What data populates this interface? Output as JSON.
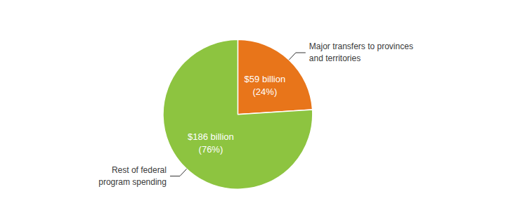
{
  "chart_data": {
    "type": "pie",
    "values": [
      24,
      76
    ],
    "value_labels": [
      "$59 billion\n(24%)",
      "$186 billion\n(76%)"
    ],
    "colors": [
      "#E8751A",
      "#8DC440"
    ],
    "data_labels": true,
    "annotations": [
      "Major transfers to provinces\nand territories",
      "Rest of federal\nprogram spending"
    ]
  }
}
